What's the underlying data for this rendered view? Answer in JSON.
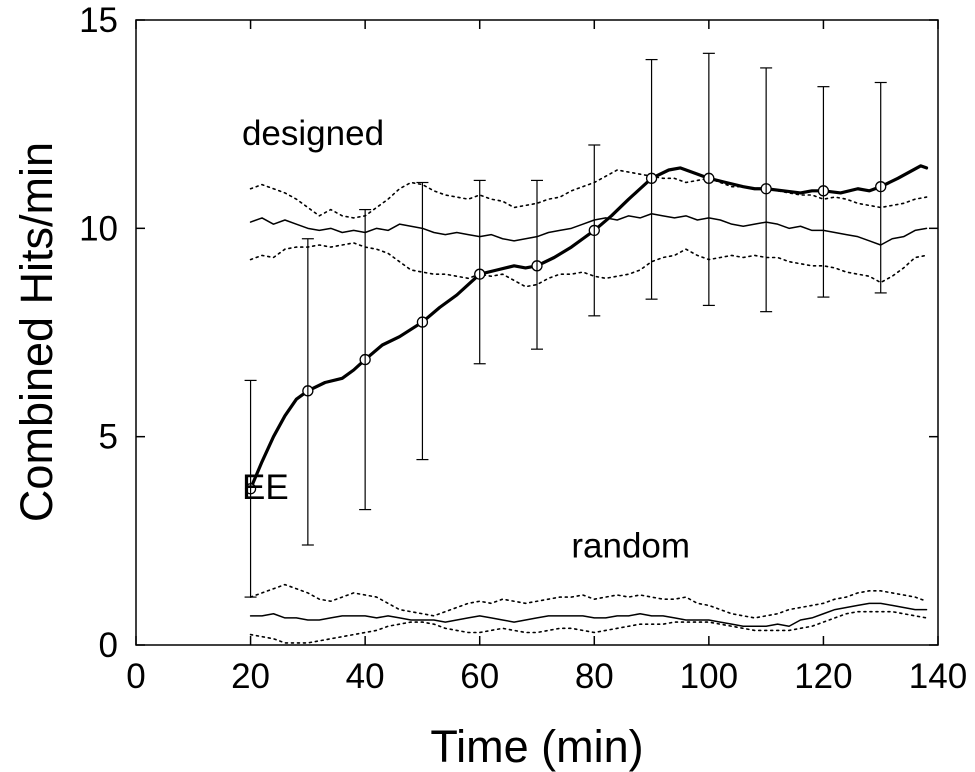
{
  "chart_data": {
    "type": "line",
    "xlabel": "Time (min)",
    "ylabel": "Combined Hits/min",
    "xlim": [
      0,
      140
    ],
    "ylim": [
      0,
      15
    ],
    "xticks": [
      "0",
      "20",
      "40",
      "60",
      "80",
      "100",
      "120",
      "140"
    ],
    "yticks": [
      "0",
      "5",
      "10",
      "15"
    ],
    "grid": false,
    "annotations": [
      {
        "text": "designed",
        "x": 18.5,
        "y": 12.0
      },
      {
        "text": "EE",
        "x": 18.5,
        "y": 3.5
      },
      {
        "text": "random",
        "x": 76,
        "y": 2.1
      }
    ],
    "series": [
      {
        "style": "thick-solid-with-markers",
        "x": [
          20,
          22,
          24,
          26,
          28,
          30,
          33,
          36,
          38,
          40,
          43,
          46,
          50,
          53,
          56,
          58,
          60,
          63,
          66,
          68,
          70,
          73,
          76,
          78,
          80,
          83,
          86,
          88,
          90,
          93,
          95,
          98,
          100,
          103,
          106,
          108,
          110,
          113,
          116,
          118,
          120,
          123,
          126,
          128,
          130,
          133,
          135,
          137,
          138
        ],
        "y": [
          3.75,
          4.4,
          5.0,
          5.5,
          5.9,
          6.1,
          6.3,
          6.4,
          6.6,
          6.85,
          7.2,
          7.4,
          7.75,
          8.1,
          8.4,
          8.65,
          8.9,
          9.0,
          9.1,
          9.05,
          9.1,
          9.3,
          9.55,
          9.75,
          9.95,
          10.3,
          10.7,
          10.95,
          11.2,
          11.4,
          11.45,
          11.3,
          11.2,
          11.1,
          11.0,
          10.95,
          10.95,
          10.9,
          10.85,
          10.9,
          10.9,
          10.85,
          10.95,
          10.9,
          11.0,
          11.2,
          11.35,
          11.5,
          11.45
        ],
        "markers": {
          "x": [
            20,
            30,
            40,
            50,
            60,
            70,
            80,
            90,
            100,
            110,
            120,
            130
          ],
          "y": [
            3.75,
            6.1,
            6.85,
            7.75,
            8.9,
            9.1,
            9.95,
            11.2,
            11.2,
            10.95,
            10.9,
            11.0
          ]
        },
        "error_bars": {
          "x": [
            20,
            30,
            40,
            50,
            60,
            70,
            80,
            90,
            100,
            110,
            120,
            130
          ],
          "low": [
            1.15,
            2.4,
            3.25,
            4.45,
            6.75,
            7.1,
            7.9,
            8.3,
            8.15,
            8.0,
            8.35,
            8.45
          ],
          "high": [
            6.35,
            9.75,
            10.45,
            11.1,
            11.15,
            11.15,
            12.0,
            14.05,
            14.2,
            13.85,
            13.4,
            13.5
          ]
        }
      },
      {
        "style": "thin-solid",
        "group": "designed",
        "x": [
          20,
          22,
          24,
          26,
          28,
          30,
          32,
          34,
          36,
          38,
          40,
          42,
          44,
          46,
          48,
          50,
          52,
          54,
          56,
          58,
          60,
          62,
          64,
          66,
          68,
          70,
          72,
          74,
          76,
          78,
          80,
          82,
          84,
          86,
          88,
          90,
          92,
          94,
          96,
          98,
          100,
          102,
          104,
          106,
          108,
          110,
          112,
          114,
          116,
          118,
          120,
          122,
          124,
          126,
          128,
          130,
          132,
          134,
          136,
          138
        ],
        "y": [
          10.15,
          10.25,
          10.1,
          10.2,
          10.1,
          10.0,
          9.95,
          10.0,
          9.9,
          9.95,
          9.9,
          10.0,
          9.95,
          10.1,
          10.05,
          10.0,
          9.9,
          9.85,
          9.9,
          9.85,
          9.8,
          9.85,
          9.75,
          9.7,
          9.75,
          9.8,
          9.9,
          9.95,
          10.0,
          10.1,
          10.2,
          10.25,
          10.2,
          10.3,
          10.25,
          10.35,
          10.3,
          10.25,
          10.3,
          10.2,
          10.25,
          10.2,
          10.1,
          10.05,
          10.1,
          10.15,
          10.1,
          10.0,
          10.05,
          9.95,
          9.95,
          9.9,
          9.85,
          9.8,
          9.7,
          9.6,
          9.75,
          9.8,
          9.95,
          10.0
        ]
      },
      {
        "style": "dotted",
        "group": "designed-upper",
        "x": [
          20,
          22,
          24,
          26,
          28,
          30,
          32,
          34,
          36,
          38,
          40,
          42,
          44,
          46,
          48,
          50,
          52,
          54,
          56,
          58,
          60,
          62,
          64,
          66,
          68,
          70,
          72,
          74,
          76,
          78,
          80,
          82,
          84,
          86,
          88,
          90,
          92,
          94,
          96,
          98,
          100,
          102,
          104,
          106,
          108,
          110,
          112,
          114,
          116,
          118,
          120,
          122,
          124,
          126,
          128,
          130,
          132,
          134,
          136,
          138
        ],
        "y": [
          10.95,
          11.05,
          10.95,
          10.85,
          10.7,
          10.5,
          10.3,
          10.45,
          10.3,
          10.25,
          10.3,
          10.5,
          10.7,
          10.95,
          11.1,
          11.05,
          10.9,
          10.8,
          10.75,
          10.7,
          10.8,
          10.7,
          10.65,
          10.5,
          10.55,
          10.6,
          10.7,
          10.75,
          10.9,
          11.0,
          11.1,
          11.25,
          11.4,
          11.35,
          11.3,
          11.25,
          11.2,
          11.2,
          11.1,
          11.15,
          11.2,
          11.1,
          11.0,
          11.0,
          10.95,
          11.0,
          10.9,
          10.85,
          10.8,
          10.8,
          10.7,
          10.75,
          10.7,
          10.6,
          10.55,
          10.5,
          10.55,
          10.6,
          10.7,
          10.75
        ]
      },
      {
        "style": "dotted",
        "group": "designed-lower",
        "x": [
          20,
          22,
          24,
          26,
          28,
          30,
          32,
          34,
          36,
          38,
          40,
          42,
          44,
          46,
          48,
          50,
          52,
          54,
          56,
          58,
          60,
          62,
          64,
          66,
          68,
          70,
          72,
          74,
          76,
          78,
          80,
          82,
          84,
          86,
          88,
          90,
          92,
          94,
          96,
          98,
          100,
          102,
          104,
          106,
          108,
          110,
          112,
          114,
          116,
          118,
          120,
          122,
          124,
          126,
          128,
          130,
          132,
          134,
          136,
          138
        ],
        "y": [
          9.25,
          9.35,
          9.3,
          9.5,
          9.55,
          9.55,
          9.6,
          9.55,
          9.6,
          9.65,
          9.55,
          9.5,
          9.4,
          9.2,
          9.0,
          8.95,
          8.9,
          8.9,
          8.85,
          8.8,
          8.9,
          8.85,
          8.9,
          8.75,
          8.6,
          8.65,
          8.8,
          8.9,
          8.9,
          8.95,
          8.85,
          8.8,
          8.85,
          8.9,
          9.0,
          9.2,
          9.3,
          9.35,
          9.5,
          9.35,
          9.25,
          9.3,
          9.35,
          9.3,
          9.35,
          9.3,
          9.3,
          9.2,
          9.15,
          9.1,
          9.1,
          9.05,
          8.95,
          8.9,
          8.85,
          8.7,
          8.85,
          9.05,
          9.3,
          9.35
        ]
      },
      {
        "style": "thin-solid",
        "group": "random",
        "x": [
          20,
          22,
          24,
          26,
          28,
          30,
          32,
          34,
          36,
          38,
          40,
          42,
          44,
          46,
          48,
          50,
          52,
          54,
          56,
          58,
          60,
          62,
          64,
          66,
          68,
          70,
          72,
          74,
          76,
          78,
          80,
          82,
          84,
          86,
          88,
          90,
          92,
          94,
          96,
          98,
          100,
          102,
          104,
          106,
          108,
          110,
          112,
          114,
          116,
          118,
          120,
          122,
          124,
          126,
          128,
          130,
          132,
          134,
          136,
          138
        ],
        "y": [
          0.7,
          0.7,
          0.75,
          0.65,
          0.65,
          0.6,
          0.6,
          0.65,
          0.7,
          0.7,
          0.7,
          0.65,
          0.7,
          0.65,
          0.6,
          0.6,
          0.6,
          0.55,
          0.6,
          0.65,
          0.7,
          0.65,
          0.6,
          0.55,
          0.6,
          0.65,
          0.7,
          0.7,
          0.7,
          0.7,
          0.65,
          0.65,
          0.7,
          0.7,
          0.75,
          0.7,
          0.7,
          0.65,
          0.6,
          0.6,
          0.6,
          0.55,
          0.5,
          0.45,
          0.45,
          0.45,
          0.5,
          0.45,
          0.6,
          0.65,
          0.75,
          0.85,
          0.9,
          0.95,
          1.0,
          1.0,
          0.95,
          0.9,
          0.85,
          0.85
        ]
      },
      {
        "style": "dotted",
        "group": "random-upper",
        "x": [
          20,
          22,
          24,
          26,
          28,
          30,
          32,
          34,
          36,
          38,
          40,
          42,
          44,
          46,
          48,
          50,
          52,
          54,
          56,
          58,
          60,
          62,
          64,
          66,
          68,
          70,
          72,
          74,
          76,
          78,
          80,
          82,
          84,
          86,
          88,
          90,
          92,
          94,
          96,
          98,
          100,
          102,
          104,
          106,
          108,
          110,
          112,
          114,
          116,
          118,
          120,
          122,
          124,
          126,
          128,
          130,
          132,
          134,
          136,
          138
        ],
        "y": [
          1.15,
          1.25,
          1.35,
          1.45,
          1.35,
          1.25,
          1.1,
          1.05,
          1.15,
          1.25,
          1.2,
          1.15,
          1.0,
          0.85,
          0.8,
          0.75,
          0.7,
          0.8,
          0.9,
          1.0,
          1.05,
          1.0,
          1.1,
          1.05,
          1.0,
          1.05,
          1.1,
          1.15,
          1.15,
          1.2,
          1.1,
          1.15,
          1.2,
          1.15,
          1.2,
          1.15,
          1.1,
          1.1,
          1.15,
          1.0,
          0.95,
          0.85,
          0.75,
          0.7,
          0.65,
          0.7,
          0.75,
          0.85,
          0.9,
          0.95,
          1.0,
          1.1,
          1.15,
          1.25,
          1.3,
          1.3,
          1.25,
          1.2,
          1.15,
          1.05
        ]
      },
      {
        "style": "dotted",
        "group": "random-lower",
        "x": [
          20,
          22,
          24,
          26,
          28,
          30,
          32,
          34,
          36,
          38,
          40,
          42,
          44,
          46,
          48,
          50,
          52,
          54,
          56,
          58,
          60,
          62,
          64,
          66,
          68,
          70,
          72,
          74,
          76,
          78,
          80,
          82,
          84,
          86,
          88,
          90,
          92,
          94,
          96,
          98,
          100,
          102,
          104,
          106,
          108,
          110,
          112,
          114,
          116,
          118,
          120,
          122,
          124,
          126,
          128,
          130,
          132,
          134,
          136,
          138
        ],
        "y": [
          0.25,
          0.2,
          0.15,
          0.05,
          0.05,
          0.05,
          0.1,
          0.15,
          0.2,
          0.25,
          0.3,
          0.35,
          0.45,
          0.5,
          0.55,
          0.55,
          0.5,
          0.4,
          0.35,
          0.3,
          0.3,
          0.35,
          0.4,
          0.35,
          0.3,
          0.3,
          0.35,
          0.4,
          0.4,
          0.35,
          0.3,
          0.35,
          0.4,
          0.45,
          0.5,
          0.5,
          0.5,
          0.55,
          0.55,
          0.55,
          0.55,
          0.5,
          0.45,
          0.4,
          0.35,
          0.35,
          0.35,
          0.35,
          0.4,
          0.45,
          0.55,
          0.65,
          0.75,
          0.8,
          0.8,
          0.8,
          0.8,
          0.75,
          0.7,
          0.65
        ]
      }
    ]
  }
}
